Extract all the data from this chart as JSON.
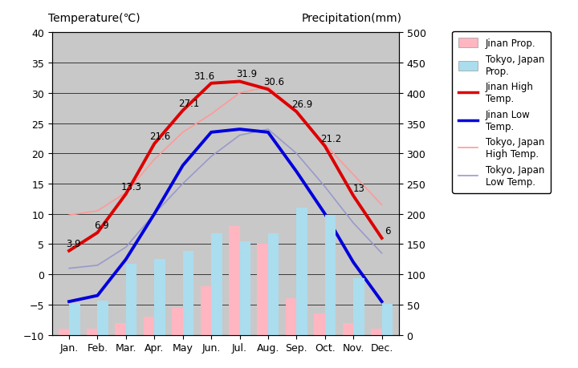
{
  "months": [
    "Jan.",
    "Feb.",
    "Mar.",
    "Apr.",
    "May",
    "Jun.",
    "Jul.",
    "Aug.",
    "Sep.",
    "Oct.",
    "Nov.",
    "Dec."
  ],
  "jinan_high": [
    3.9,
    6.9,
    13.3,
    21.6,
    27.1,
    31.6,
    31.9,
    30.6,
    26.9,
    21.2,
    13.0,
    6.0
  ],
  "jinan_low": [
    -4.5,
    -3.5,
    2.5,
    10.0,
    18.0,
    23.5,
    24.0,
    23.5,
    17.0,
    10.0,
    2.0,
    -4.5
  ],
  "tokyo_high": [
    9.8,
    10.5,
    13.5,
    19.0,
    23.5,
    26.5,
    30.0,
    31.0,
    27.0,
    21.5,
    16.5,
    11.5
  ],
  "tokyo_low": [
    1.0,
    1.5,
    4.5,
    10.0,
    15.0,
    19.5,
    23.0,
    24.0,
    20.0,
    14.5,
    8.5,
    3.5
  ],
  "jinan_precip_mm": [
    10,
    10,
    20,
    30,
    45,
    80,
    180,
    150,
    60,
    35,
    20,
    10
  ],
  "tokyo_precip_mm": [
    52,
    56,
    117,
    125,
    138,
    168,
    154,
    168,
    210,
    198,
    93,
    51
  ],
  "jinan_high_labels": [
    "3.9",
    "6.9",
    "13.3",
    "21.6",
    "27.1",
    "31.6",
    "31.9",
    "30.6",
    "26.9",
    "21.2",
    "13",
    "6"
  ],
  "title_left": "Temperature(℃)",
  "title_right": "Precipitation(mm)",
  "ylim_left": [
    -10,
    40
  ],
  "ylim_right": [
    0,
    500
  ],
  "plot_bg": "#c8c8c8",
  "fig_bg": "#ffffff",
  "bar_jinan_color": "#ffb6c1",
  "bar_tokyo_color": "#aaddee",
  "line_jinan_high_color": "#dd0000",
  "line_jinan_low_color": "#0000dd",
  "line_tokyo_high_color": "#ff9999",
  "line_tokyo_low_color": "#9999cc",
  "legend_jinan_precip": "Jinan Prop.",
  "legend_tokyo_precip": "Tokyo, Japan\nProp.",
  "legend_jinan_high": "Jinan High\nTemp.",
  "legend_jinan_low": "Jinan Low\nTemp.",
  "legend_tokyo_high": "Tokyo, Japan\nHigh Temp.",
  "legend_tokyo_low": "Tokyo, Japan\nLow Temp."
}
